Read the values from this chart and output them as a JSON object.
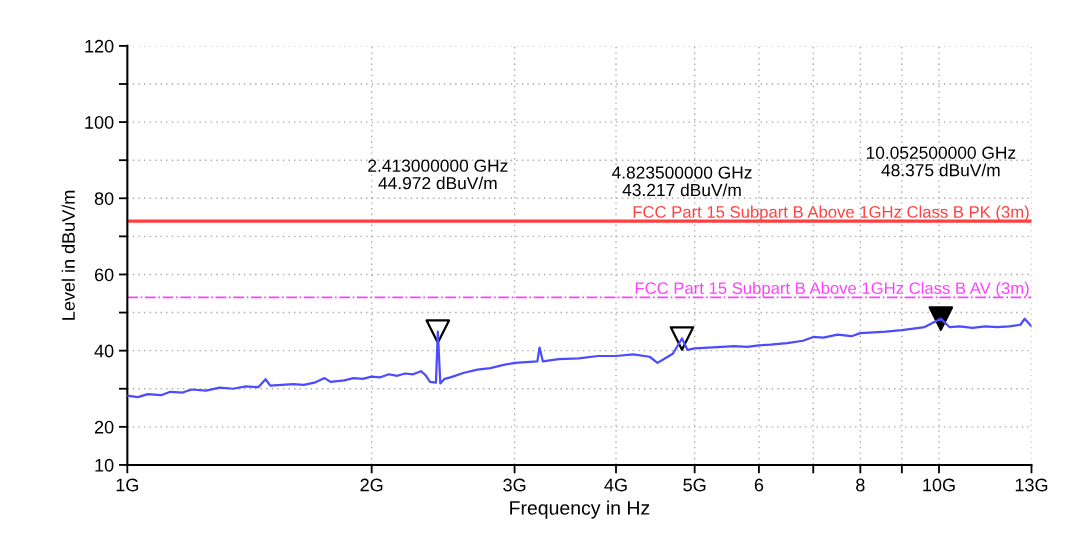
{
  "chart_data": {
    "type": "line",
    "xlabel": "Frequency in Hz",
    "ylabel": "Level in dBuV/m",
    "log": "x",
    "grid": true,
    "line_style": "solid",
    "xlim": [
      1,
      13
    ],
    "ylim": [
      10,
      120
    ],
    "xticks": [
      {
        "value": 1,
        "label": "1G"
      },
      {
        "value": 2,
        "label": "2G"
      },
      {
        "value": 3,
        "label": "3G"
      },
      {
        "value": 4,
        "label": "4G"
      },
      {
        "value": 5,
        "label": "5G"
      },
      {
        "value": 6,
        "label": "6"
      },
      {
        "value": 7,
        "label": null
      },
      {
        "value": 8,
        "label": "8"
      },
      {
        "value": 9,
        "label": null
      },
      {
        "value": 10,
        "label": "10G"
      },
      {
        "value": 13,
        "label": "13G"
      }
    ],
    "yticks": [
      10,
      20,
      {
        "value": 30,
        "label": null
      },
      40,
      {
        "value": 50,
        "label": null
      },
      60,
      {
        "value": 70,
        "label": null
      },
      80,
      {
        "value": 90,
        "label": null
      },
      100,
      {
        "value": 110,
        "label": null
      },
      120
    ],
    "series": [
      {
        "color": "#4b4bff",
        "x": [
          1.0,
          1.03,
          1.06,
          1.1,
          1.13,
          1.17,
          1.2,
          1.25,
          1.3,
          1.35,
          1.4,
          1.45,
          1.48,
          1.5,
          1.55,
          1.6,
          1.65,
          1.7,
          1.75,
          1.78,
          1.85,
          1.9,
          1.95,
          2.0,
          2.05,
          2.1,
          2.15,
          2.2,
          2.25,
          2.3,
          2.33,
          2.36,
          2.4,
          2.413,
          2.43,
          2.46,
          2.5,
          2.6,
          2.7,
          2.8,
          2.9,
          3.0,
          3.1,
          3.2,
          3.22,
          3.25,
          3.4,
          3.6,
          3.8,
          4.0,
          4.2,
          4.4,
          4.5,
          4.6,
          4.7,
          4.8235,
          4.9,
          5.0,
          5.2,
          5.4,
          5.6,
          5.8,
          6.0,
          6.2,
          6.5,
          6.8,
          7.0,
          7.2,
          7.5,
          7.8,
          8.0,
          8.3,
          8.6,
          9.0,
          9.3,
          9.6,
          10.0525,
          10.3,
          10.6,
          11.0,
          11.4,
          11.8,
          12.2,
          12.6,
          12.75,
          13.0
        ],
        "values": [
          28.2,
          27.8,
          28.6,
          28.3,
          29.2,
          29.0,
          29.8,
          29.5,
          30.3,
          30.0,
          30.6,
          30.4,
          32.5,
          30.8,
          31.0,
          31.2,
          31.0,
          31.6,
          32.8,
          31.8,
          32.2,
          32.8,
          32.6,
          33.2,
          33.0,
          33.8,
          33.4,
          34.0,
          33.8,
          34.6,
          33.6,
          31.8,
          31.6,
          45.0,
          31.4,
          32.6,
          33.0,
          34.2,
          35.0,
          35.4,
          36.2,
          36.8,
          37.0,
          37.2,
          40.8,
          37.2,
          37.8,
          38.0,
          38.6,
          38.6,
          39.0,
          38.4,
          36.8,
          38.0,
          39.2,
          43.2,
          40.2,
          40.6,
          40.8,
          41.0,
          41.2,
          41.0,
          41.4,
          41.6,
          42.0,
          42.6,
          43.6,
          43.4,
          44.2,
          43.8,
          44.6,
          44.8,
          45.0,
          45.4,
          45.8,
          46.2,
          48.4,
          46.2,
          46.4,
          46.0,
          46.4,
          46.2,
          46.4,
          46.8,
          48.4,
          46.4
        ]
      },
      {
        "type": "scatter",
        "marker": "triangle",
        "x": [
          2.413,
          4.8235,
          10.0525
        ],
        "values": [
          45.0,
          43.2,
          48.4
        ],
        "colors": [
          "#ffffff",
          "#ffffff",
          "#000000"
        ]
      }
    ],
    "ref_lines": [
      {
        "axis": "y",
        "value": 74,
        "label": "FCC Part 15 Subpart B Above 1GHz Class B PK (3m)",
        "color": "#ff4040",
        "line_style": "solid"
      },
      {
        "axis": "y",
        "value": 54,
        "label": "FCC Part 15 Subpart B Above 1GHz Class B AV (3m)",
        "color": "#ff40ff",
        "line_style": "dashdot"
      }
    ],
    "annotations": [
      "2.413000000 GHz\n44.972 dBuV/m",
      "4.823500000 GHz\n43.217 dBuV/m",
      "10.052500000 GHz\n48.375 dBuV/m"
    ]
  }
}
